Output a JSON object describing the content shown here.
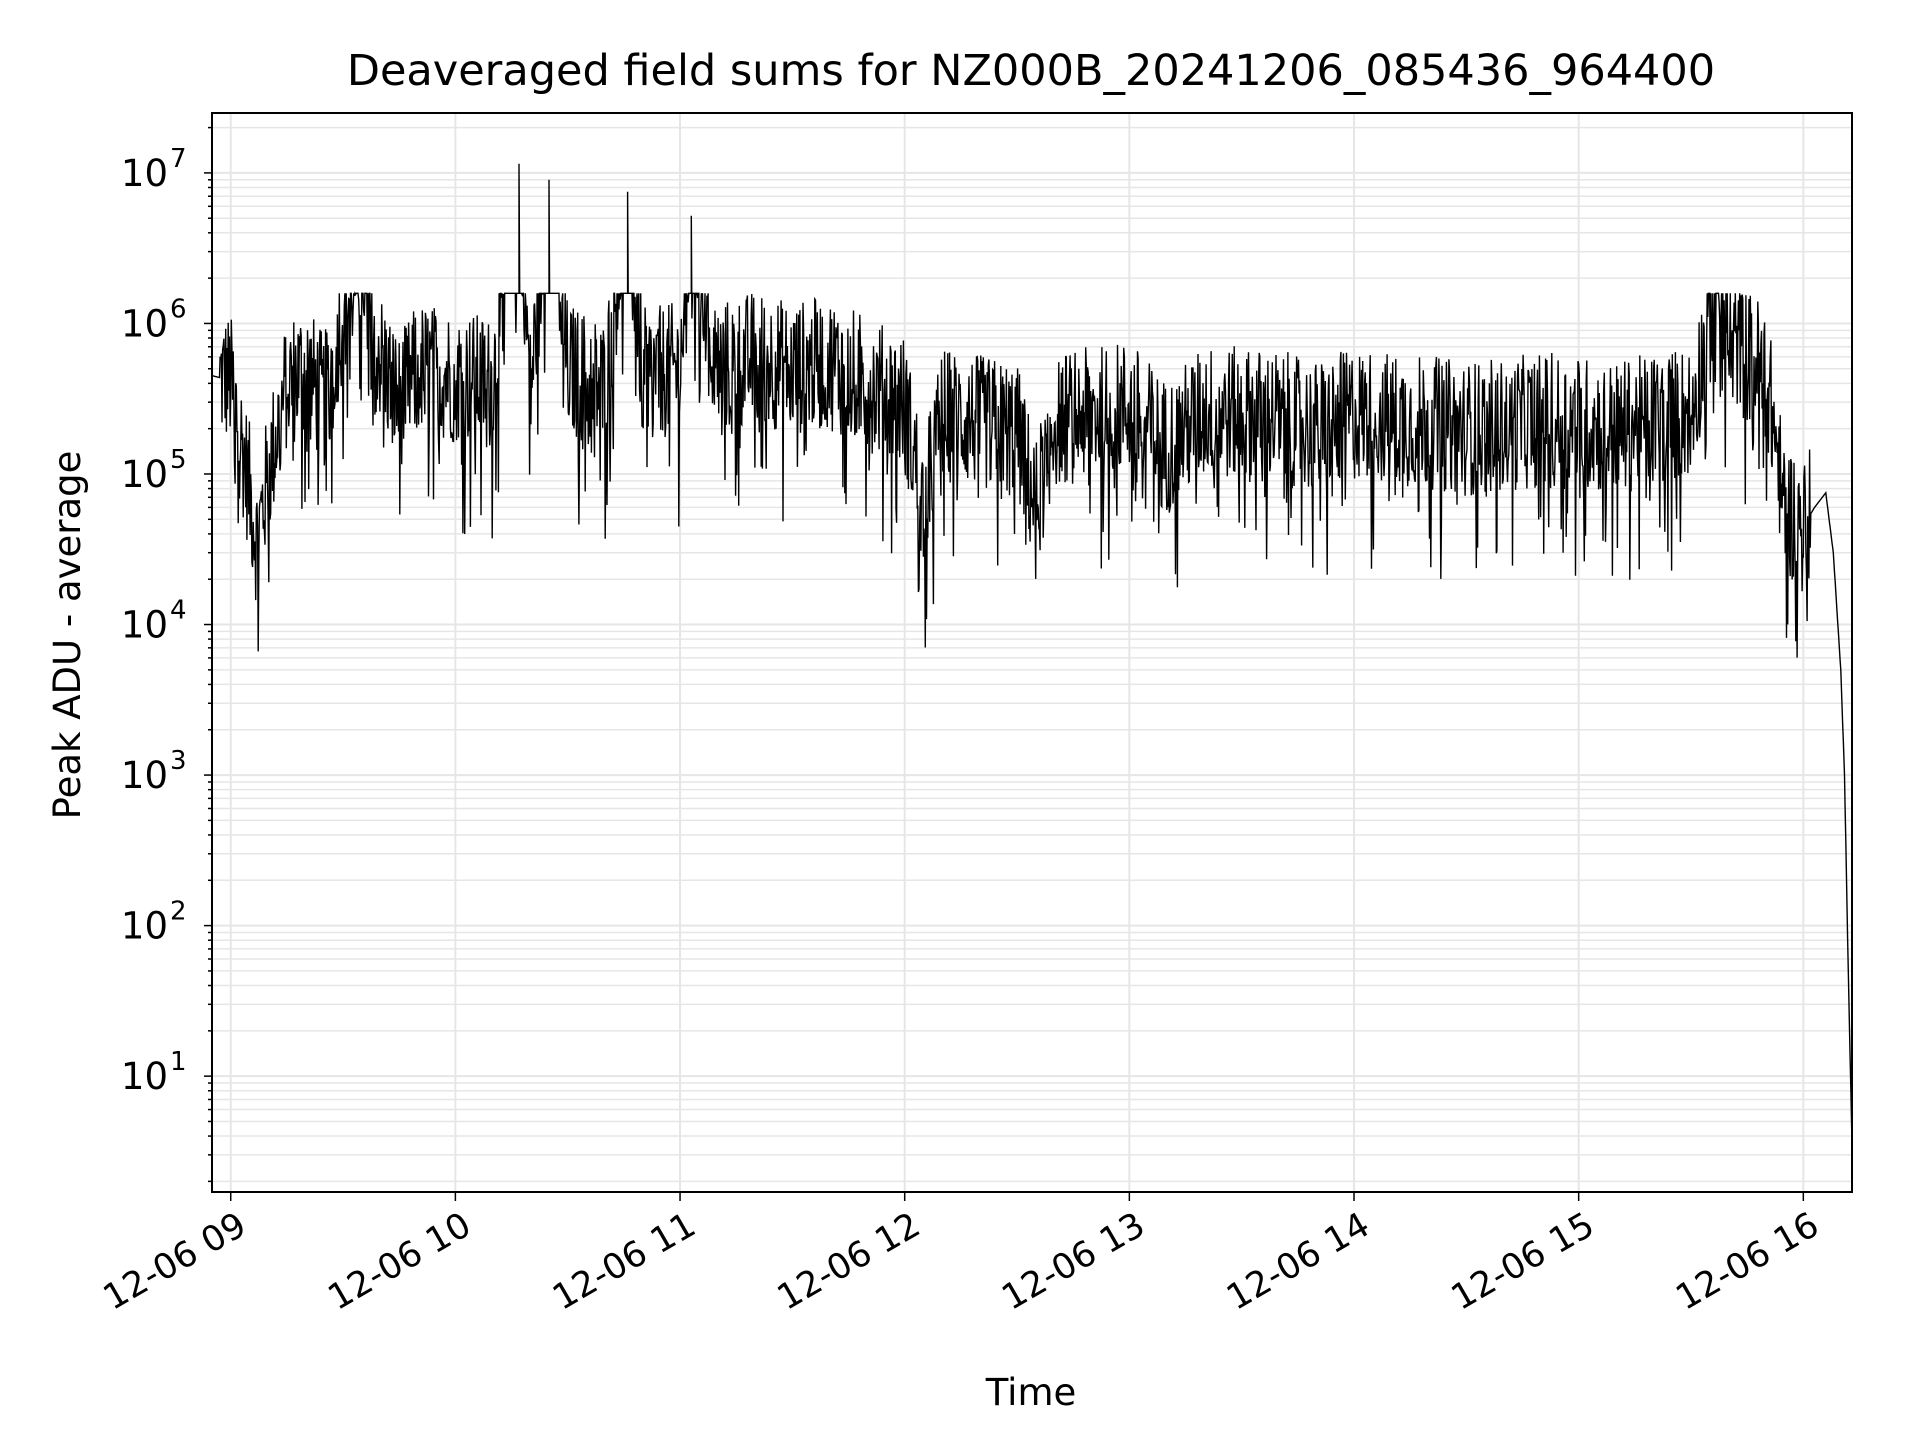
{
  "chart_data": {
    "type": "line",
    "title": "Deaveraged field sums for NZ000B_20241206_085436_964400",
    "xlabel": "Time",
    "ylabel": "Peak ADU - average",
    "yscale": "log",
    "ylim": [
      1.7,
      25000000
    ],
    "xlim": [
      "2024-12-06 08:55",
      "2024-12-06 16:13"
    ],
    "grid": true,
    "line_color": "#000000",
    "grid_color": "#e6e6e6",
    "x_tick_labels": [
      "12-06 09",
      "12-06 10",
      "12-06 11",
      "12-06 12",
      "12-06 13",
      "12-06 14",
      "12-06 15",
      "12-06 16"
    ],
    "x_tick_times": [
      "2024-12-06 09:00",
      "2024-12-06 10:00",
      "2024-12-06 11:00",
      "2024-12-06 12:00",
      "2024-12-06 13:00",
      "2024-12-06 14:00",
      "2024-12-06 15:00",
      "2024-12-06 16:00"
    ],
    "y_ticks": [
      {
        "value": 10,
        "base": "10",
        "exp": "1"
      },
      {
        "value": 100,
        "base": "10",
        "exp": "2"
      },
      {
        "value": 1000,
        "base": "10",
        "exp": "3"
      },
      {
        "value": 10000,
        "base": "10",
        "exp": "4"
      },
      {
        "value": 100000,
        "base": "10",
        "exp": "5"
      },
      {
        "value": 1000000,
        "base": "10",
        "exp": "6"
      },
      {
        "value": 10000000,
        "base": "10",
        "exp": "7"
      }
    ],
    "series": [
      {
        "x": [
          "2024-12-06 08:55",
          "2024-12-06 09:00",
          "2024-12-06 09:05",
          "2024-12-06 09:07",
          "2024-12-06 09:10",
          "2024-12-06 09:15",
          "2024-12-06 09:20",
          "2024-12-06 09:25",
          "2024-12-06 09:30",
          "2024-12-06 09:35",
          "2024-12-06 09:40",
          "2024-12-06 09:45",
          "2024-12-06 09:50",
          "2024-12-06 10:00",
          "2024-12-06 10:10",
          "2024-12-06 10:17",
          "2024-12-06 10:20",
          "2024-12-06 10:25",
          "2024-12-06 10:30",
          "2024-12-06 10:40",
          "2024-12-06 10:46",
          "2024-12-06 10:50",
          "2024-12-06 11:00",
          "2024-12-06 11:03",
          "2024-12-06 11:10",
          "2024-12-06 11:20",
          "2024-12-06 11:30",
          "2024-12-06 11:40",
          "2024-12-06 11:50",
          "2024-12-06 12:00",
          "2024-12-06 12:05",
          "2024-12-06 12:10",
          "2024-12-06 12:20",
          "2024-12-06 12:30",
          "2024-12-06 12:35",
          "2024-12-06 12:40",
          "2024-12-06 12:50",
          "2024-12-06 13:00",
          "2024-12-06 13:10",
          "2024-12-06 13:20",
          "2024-12-06 13:30",
          "2024-12-06 13:40",
          "2024-12-06 13:50",
          "2024-12-06 14:00",
          "2024-12-06 14:10",
          "2024-12-06 14:20",
          "2024-12-06 14:30",
          "2024-12-06 14:40",
          "2024-12-06 14:50",
          "2024-12-06 15:00",
          "2024-12-06 15:10",
          "2024-12-06 15:20",
          "2024-12-06 15:30",
          "2024-12-06 15:35",
          "2024-12-06 15:37",
          "2024-12-06 15:40",
          "2024-12-06 15:45",
          "2024-12-06 15:50",
          "2024-12-06 15:55",
          "2024-12-06 16:00",
          "2024-12-06 16:03",
          "2024-12-06 16:06",
          "2024-12-06 16:08",
          "2024-12-06 16:10",
          "2024-12-06 16:11",
          "2024-12-06 16:12",
          "2024-12-06 16:13"
        ],
        "y": [
          450000,
          420000,
          80000,
          35000,
          100000,
          400000,
          500000,
          300000,
          1200000,
          2500000,
          600000,
          300000,
          500000,
          450000,
          400000,
          11500000,
          350000,
          9000000,
          500000,
          380000,
          7500000,
          450000,
          500000,
          5200000,
          500000,
          600000,
          500000,
          550000,
          400000,
          300000,
          60000,
          250000,
          220000,
          200000,
          60000,
          230000,
          250000,
          280000,
          150000,
          260000,
          250000,
          240000,
          200000,
          250000,
          230000,
          220000,
          200000,
          210000,
          230000,
          220000,
          200000,
          230000,
          260000,
          1000000,
          2500000,
          900000,
          600000,
          500000,
          60000,
          45000,
          60000,
          75000,
          30000,
          5000,
          1000,
          50,
          3.5
        ]
      }
    ]
  }
}
